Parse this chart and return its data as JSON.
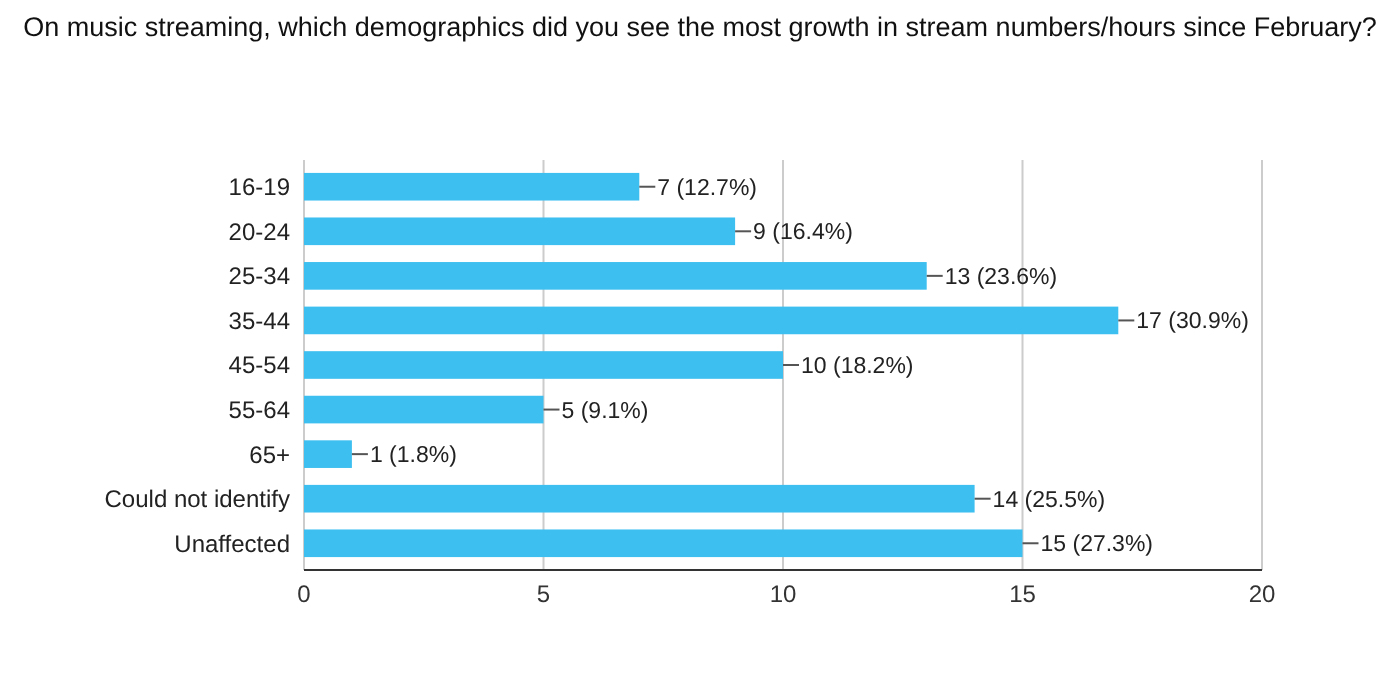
{
  "chart_data": {
    "type": "bar",
    "orientation": "horizontal",
    "title": "On music streaming, which demographics did you see the most growth in stream numbers/hours since February?",
    "categories": [
      "16-19",
      "20-24",
      "25-34",
      "35-44",
      "45-54",
      "55-64",
      "65+",
      "Could not identify",
      "Unaffected"
    ],
    "values": [
      7,
      9,
      13,
      17,
      10,
      5,
      1,
      14,
      15
    ],
    "value_labels": [
      "7 (12.7%)",
      "9 (16.4%)",
      "13 (23.6%)",
      "17 (30.9%)",
      "10 (18.2%)",
      "5 (9.1%)",
      "1 (1.8%)",
      "14 (25.5%)",
      "15 (27.3%)"
    ],
    "color": "#3dbff0",
    "xlim": [
      0,
      20
    ],
    "xticks": [
      0,
      5,
      10,
      15,
      20
    ],
    "grid": "x"
  }
}
